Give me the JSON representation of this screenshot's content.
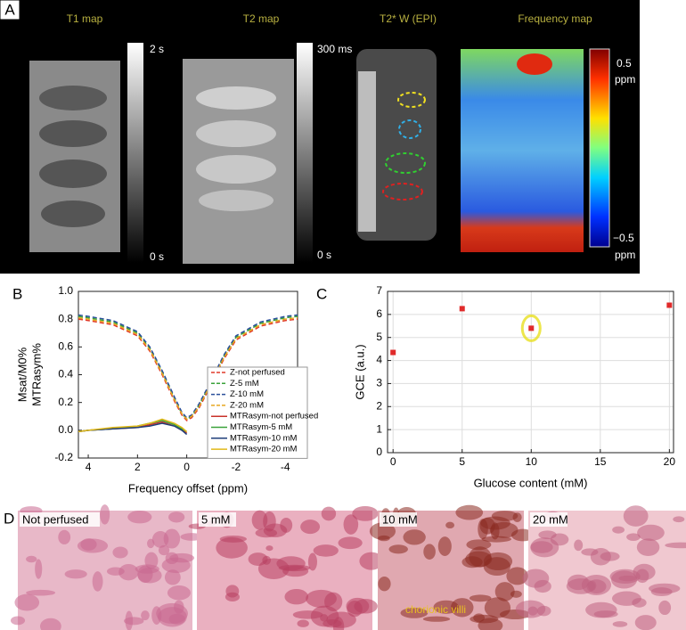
{
  "panel_labels": [
    "A",
    "B",
    "C",
    "D"
  ],
  "panel_a": {
    "titles": [
      "T1 map",
      "T2 map",
      "T2* W (EPI)",
      "Frequency map"
    ],
    "colorbar_labels": [
      "2 s",
      "0 s",
      "300 ms",
      "0 s",
      "0.5",
      "ppm",
      "−0.5",
      "ppm"
    ]
  },
  "panel_d": {
    "labels": [
      "Not perfused",
      "5 mM",
      "10 mM",
      "20 mM"
    ],
    "annotation": "chorionic villi"
  },
  "chart_data": [
    {
      "type": "line",
      "ylabel": [
        "Msat/M0%",
        "MTRasym%"
      ],
      "xlabel": "Frequency offset (ppm)",
      "x": [
        4.4,
        4,
        3,
        2,
        1.5,
        1,
        0.5,
        0.2,
        0,
        -0.2,
        -0.5,
        -1,
        -1.5,
        -2,
        -3,
        -4,
        -4.5
      ],
      "xlim": [
        4.4,
        -4.5
      ],
      "xticks": [
        4,
        2,
        0,
        -2,
        -4
      ],
      "ylim": [
        -0.2,
        1.0
      ],
      "yticks": [
        -0.2,
        {
          "value": 0,
          "label": "0.0"
        },
        0.2,
        0.4,
        0.6,
        0.8,
        {
          "value": 1,
          "label": "1.0"
        }
      ],
      "series": [
        {
          "name": "Z-not perfused",
          "color": "#e03a2a",
          "dashed": true,
          "values": [
            0.8,
            0.79,
            0.76,
            0.68,
            0.57,
            0.4,
            0.21,
            0.11,
            0.07,
            0.09,
            0.16,
            0.33,
            0.51,
            0.65,
            0.75,
            0.79,
            0.8
          ]
        },
        {
          "name": "Z-5 mM",
          "color": "#3aa23a",
          "dashed": true,
          "values": [
            0.82,
            0.81,
            0.78,
            0.7,
            0.59,
            0.42,
            0.23,
            0.12,
            0.08,
            0.1,
            0.18,
            0.35,
            0.53,
            0.67,
            0.77,
            0.81,
            0.82
          ]
        },
        {
          "name": "Z-10 mM",
          "color": "#2a4f9a",
          "dashed": true,
          "values": [
            0.83,
            0.82,
            0.79,
            0.71,
            0.6,
            0.43,
            0.24,
            0.13,
            0.09,
            0.11,
            0.19,
            0.36,
            0.54,
            0.68,
            0.78,
            0.82,
            0.83
          ]
        },
        {
          "name": "Z-20 mM",
          "color": "#e8a820",
          "dashed": true,
          "values": [
            0.81,
            0.8,
            0.77,
            0.69,
            0.58,
            0.41,
            0.22,
            0.12,
            0.08,
            0.1,
            0.17,
            0.34,
            0.52,
            0.66,
            0.76,
            0.8,
            0.81
          ]
        },
        {
          "name": "MTRasym-not perfused",
          "color": "#c8322a",
          "dashed": false,
          "values": [
            -0.01,
            0,
            0.01,
            0.02,
            0.04,
            0.06,
            0.03,
            0.0,
            -0.02,
            null,
            null,
            null,
            null,
            null,
            null,
            null,
            null
          ]
        },
        {
          "name": "MTRasym-5 mM",
          "color": "#3aa23a",
          "dashed": false,
          "values": [
            -0.01,
            0,
            0.01,
            0.03,
            0.05,
            0.07,
            0.04,
            0.01,
            -0.01,
            null,
            null,
            null,
            null,
            null,
            null,
            null,
            null
          ]
        },
        {
          "name": "MTRasym-10 mM",
          "color": "#1f3f7a",
          "dashed": false,
          "values": [
            -0.01,
            0,
            0.01,
            0.02,
            0.03,
            0.05,
            0.03,
            0.0,
            -0.03,
            null,
            null,
            null,
            null,
            null,
            null,
            null,
            null
          ]
        },
        {
          "name": "MTRasym-20 mM",
          "color": "#e0b818",
          "dashed": false,
          "values": [
            -0.01,
            0,
            0.02,
            0.03,
            0.05,
            0.08,
            0.05,
            0.02,
            -0.01,
            null,
            null,
            null,
            null,
            null,
            null,
            null,
            null
          ]
        }
      ]
    },
    {
      "type": "scatter",
      "xlabel": "Glucose content (mM)",
      "ylabel": "GCE (a.u.)",
      "x": [
        0,
        5,
        10,
        20
      ],
      "values": [
        4.35,
        6.25,
        5.4,
        6.4
      ],
      "color": "#e02a2a",
      "xlim": [
        -0.4,
        20.3
      ],
      "xticks": [
        0,
        5,
        10,
        15,
        20
      ],
      "ylim": [
        0,
        7
      ],
      "yticks": [
        0,
        1,
        2,
        3,
        4,
        5,
        6,
        7
      ],
      "grid": true
    }
  ]
}
